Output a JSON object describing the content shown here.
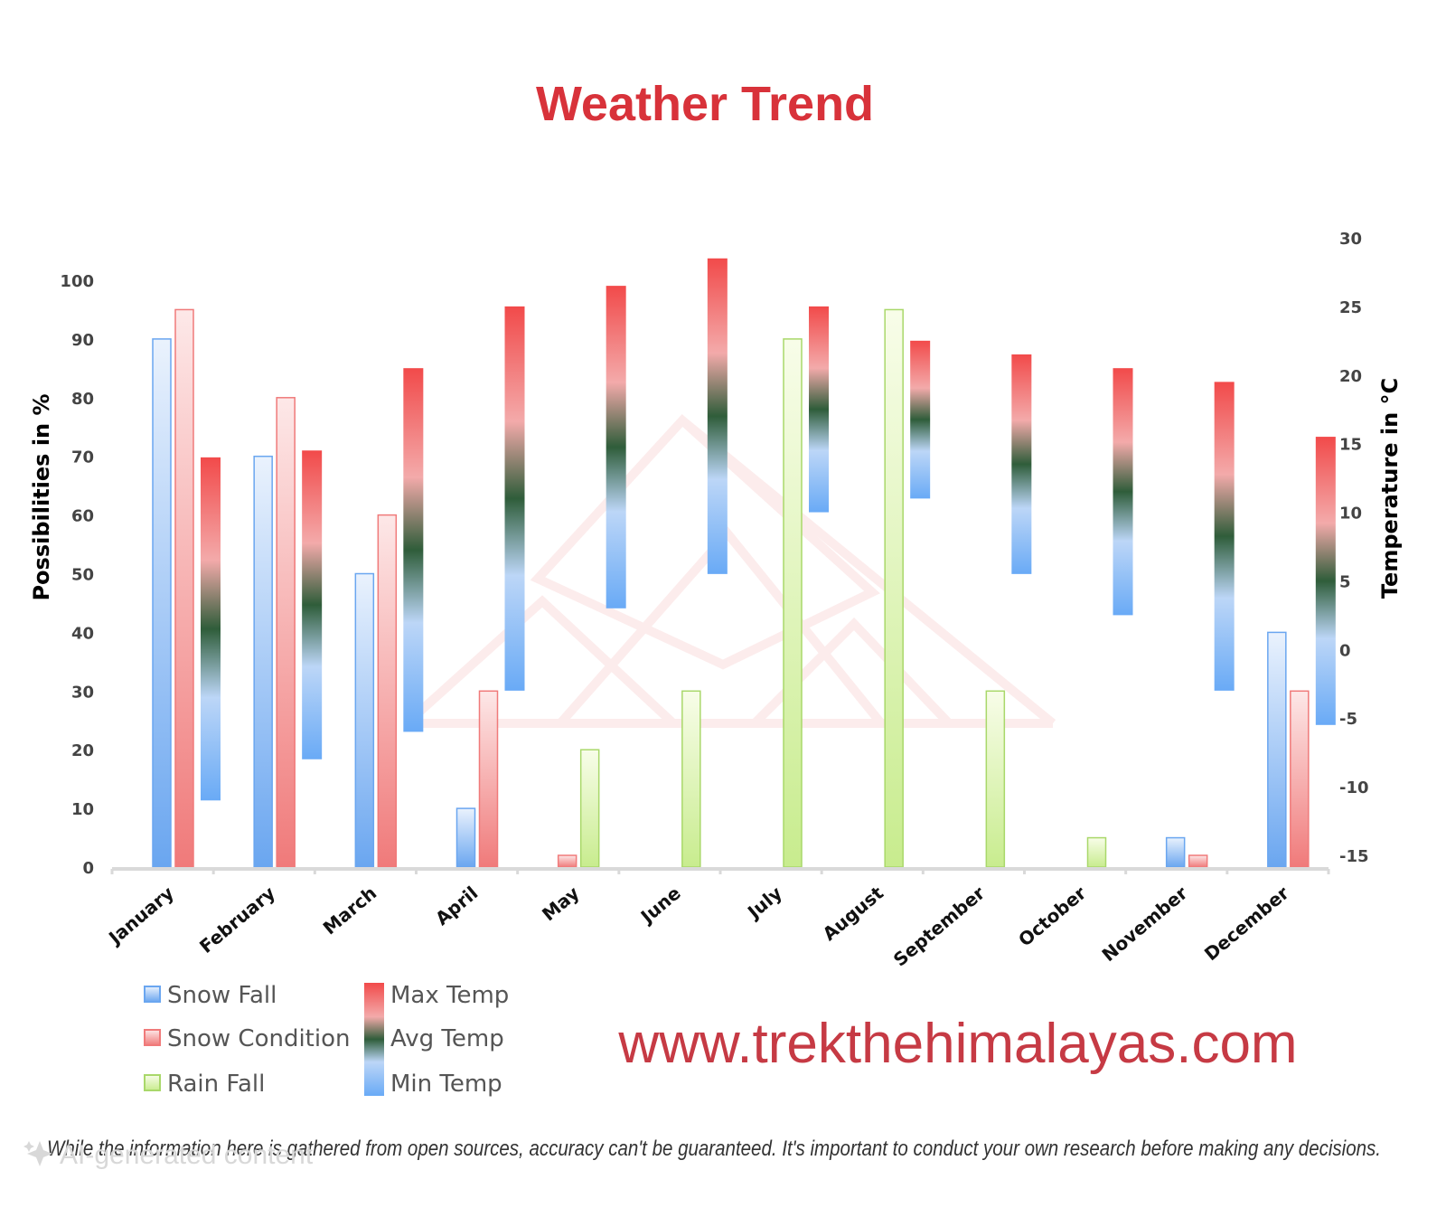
{
  "colors": {
    "title": "#d8323a",
    "site": "#c63a44",
    "snow_fall": "#6aa6f0",
    "snow_condition": "#f07a7a",
    "rain_fall": "#c8ec8e",
    "max_temp": "#f24a4a",
    "avg_temp": "#2f5d3a",
    "min_temp": "#69aaf6"
  },
  "chart_data": {
    "type": "bar",
    "title": "Weather Trend",
    "categories": [
      "January",
      "February",
      "March",
      "April",
      "May",
      "June",
      "July",
      "August",
      "September",
      "October",
      "November",
      "December"
    ],
    "y_left": {
      "label": "Possibilities in %",
      "range": [
        0,
        100
      ],
      "ticks": [
        "0",
        "10",
        "20",
        "30",
        "40",
        "50",
        "60",
        "70",
        "80",
        "90",
        "100"
      ]
    },
    "y_right": {
      "label": "Temperature in °C",
      "range": [
        -15,
        30
      ],
      "ticks": [
        "-15",
        "-10",
        "-5",
        "0",
        "5",
        "10",
        "15",
        "20",
        "25",
        "30"
      ]
    },
    "series": [
      {
        "name": "Snow Fall",
        "axis": "left",
        "values": [
          90,
          70,
          50,
          10,
          0,
          0,
          0,
          0,
          0,
          0,
          5,
          40
        ]
      },
      {
        "name": "Snow Condition",
        "axis": "left",
        "values": [
          95,
          80,
          60,
          30,
          2,
          0,
          0,
          0,
          0,
          0,
          2,
          30
        ]
      },
      {
        "name": "Rain Fall",
        "axis": "left",
        "values": [
          0,
          0,
          0,
          0,
          20,
          30,
          90,
          95,
          30,
          5,
          0,
          0
        ]
      },
      {
        "name": "Max Temp",
        "axis": "right",
        "values": [
          14,
          14.5,
          20.5,
          25,
          26.5,
          28.5,
          25,
          22.5,
          21.5,
          20.5,
          19.5,
          15.5
        ]
      },
      {
        "name": "Avg Temp",
        "axis": "right",
        "values": [
          2,
          3,
          6,
          9,
          14,
          19,
          18,
          17,
          13,
          11,
          8,
          5
        ]
      },
      {
        "name": "Min Temp",
        "axis": "right",
        "values": [
          -11,
          -8,
          -6,
          -3,
          3,
          5.5,
          10,
          11,
          5.5,
          2.5,
          -3,
          -5.5
        ]
      }
    ],
    "legend_position": "bottom-left",
    "grid": false
  },
  "legend": {
    "items": [
      {
        "label": "Snow Fall",
        "kind": "snow_fall"
      },
      {
        "label": "Snow Condition",
        "kind": "snow_condition"
      },
      {
        "label": "Rain Fall",
        "kind": "rain_fall"
      },
      {
        "label": "Max Temp",
        "kind": "max_temp"
      },
      {
        "label": "Avg Temp",
        "kind": "avg_temp"
      },
      {
        "label": "Min Temp",
        "kind": "min_temp"
      }
    ]
  },
  "website": "www.trekthehimalayas.com",
  "disclaimer": "While the information here is gathered from open sources, accuracy can't be guaranteed. It's important to conduct your own research before making any decisions.",
  "watermark": "AI-generated content",
  "watermark_icon": "sparkle-icon"
}
